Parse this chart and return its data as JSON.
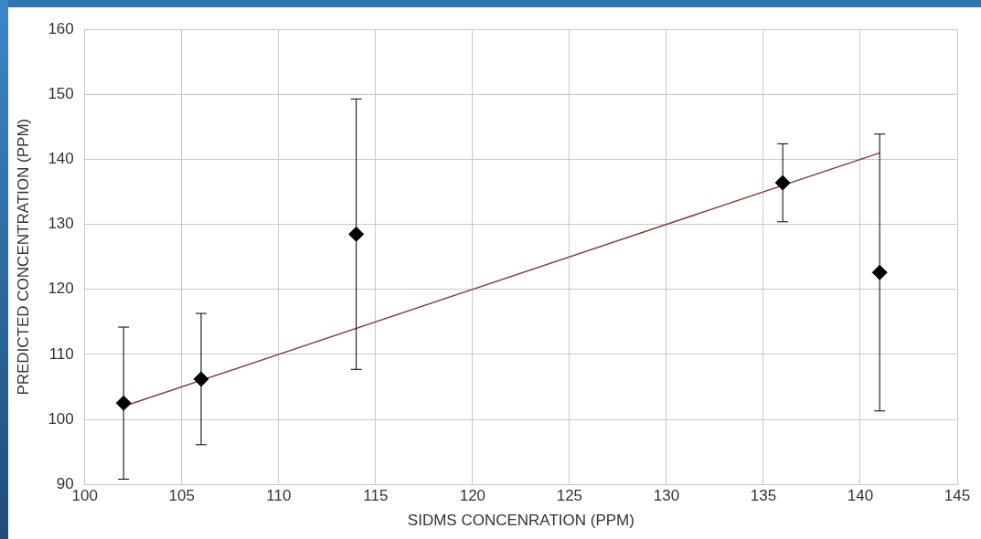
{
  "chart_data": {
    "type": "scatter",
    "xlabel": "SIDMS CONCENRATION (PPM)",
    "ylabel": "PREDICTED CONCENTRATION (PPM)",
    "xlim": [
      100,
      145
    ],
    "xticks": [
      100,
      105,
      110,
      115,
      120,
      125,
      130,
      135,
      140,
      145
    ],
    "ylim": [
      90,
      160
    ],
    "yticks": [
      90,
      100,
      110,
      120,
      130,
      140,
      150,
      160
    ],
    "grid": true,
    "legend": false,
    "series": [
      {
        "marker": "diamond",
        "color": "#000000",
        "x": [
          102,
          106,
          114,
          136,
          141
        ],
        "values": [
          102.5,
          106.2,
          128.5,
          136.4,
          122.6
        ],
        "errors": [
          11.7,
          10.1,
          20.8,
          6.0,
          21.3
        ]
      },
      {
        "type": "line",
        "marker": "none",
        "color": "#8b3a3a",
        "x": [
          102,
          141
        ],
        "values": [
          102,
          141
        ]
      }
    ]
  }
}
